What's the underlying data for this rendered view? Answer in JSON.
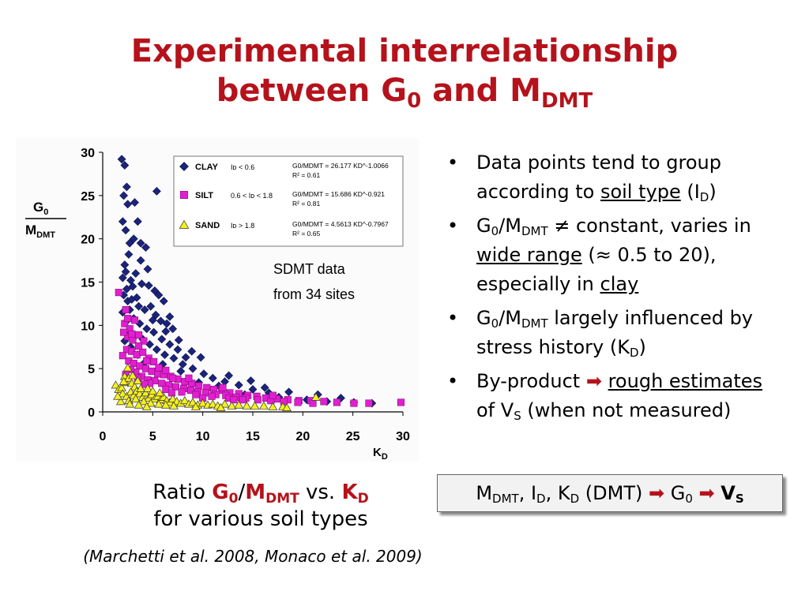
{
  "slide": {
    "title_line1": "Experimental interrelationship",
    "title_line2_a": "between G",
    "title_line2_sub0": "0",
    "title_line2_b": " and M",
    "title_line2_subDMT": "DMT",
    "colors": {
      "title": "#b5121b",
      "clay": "#1a237e",
      "silt": "#e020d0",
      "sand": "#f5f01a"
    }
  },
  "chart_data": {
    "type": "scatter",
    "xlabel_main": "K",
    "xlabel_sub": "D",
    "ylabel_top_main": "G",
    "ylabel_top_sub": "0",
    "ylabel_bottom_main": "M",
    "ylabel_bottom_sub": "DMT",
    "xlim": [
      0,
      30
    ],
    "ylim": [
      0,
      30
    ],
    "xticks": [
      0,
      5,
      10,
      15,
      20,
      25,
      30
    ],
    "yticks": [
      0,
      5,
      10,
      15,
      20,
      25,
      30
    ],
    "grid": false,
    "legend_position": "top-right",
    "annotation_line1": "SDMT data",
    "annotation_line2": "from 34 sites",
    "series": [
      {
        "name": "CLAY",
        "marker": "diamond",
        "color": "#1a237e",
        "condition": "I_D < 0.6",
        "equation": "G0/MDMT = 26.177 KD^-1.0066",
        "r2": "R² = 0.61",
        "points": [
          [
            1.9,
            29.2
          ],
          [
            2.2,
            28.5
          ],
          [
            2.4,
            26
          ],
          [
            2.1,
            25
          ],
          [
            2.5,
            24
          ],
          [
            2.0,
            22
          ],
          [
            2.3,
            21
          ],
          [
            3.2,
            24.2
          ],
          [
            3.5,
            22
          ],
          [
            5.4,
            25.5
          ],
          [
            4.3,
            19
          ],
          [
            3.1,
            20
          ],
          [
            2.7,
            19.5
          ],
          [
            3.8,
            17.5
          ],
          [
            4.5,
            16.5
          ],
          [
            2.2,
            17
          ],
          [
            2.6,
            18.2
          ],
          [
            2.3,
            16.2
          ],
          [
            2.0,
            15.5
          ],
          [
            2.8,
            15.2
          ],
          [
            3.3,
            16
          ],
          [
            3.0,
            14.5
          ],
          [
            2.4,
            14.2
          ],
          [
            2.1,
            13.5
          ],
          [
            2.5,
            12.8
          ],
          [
            3.4,
            13.2
          ],
          [
            3.9,
            14.8
          ],
          [
            4.6,
            14.6
          ],
          [
            5.2,
            14
          ],
          [
            5.6,
            13.5
          ],
          [
            6.1,
            12.8
          ],
          [
            3.6,
            12.2
          ],
          [
            4.2,
            11.8
          ],
          [
            4.8,
            12.2
          ],
          [
            5.3,
            11.2
          ],
          [
            5.8,
            10.5
          ],
          [
            6.4,
            10.2
          ],
          [
            7.0,
            9.6
          ],
          [
            3.1,
            10.8
          ],
          [
            3.7,
            10.2
          ],
          [
            4.4,
            9.6
          ],
          [
            5.1,
            9.2
          ],
          [
            5.9,
            8.4
          ],
          [
            6.7,
            7.8
          ],
          [
            7.5,
            7.2
          ],
          [
            8.3,
            6.3
          ],
          [
            4.0,
            8.4
          ],
          [
            4.7,
            7.8
          ],
          [
            5.4,
            7.2
          ],
          [
            6.2,
            6.6
          ],
          [
            7.1,
            6.2
          ],
          [
            8.0,
            5.5
          ],
          [
            9.0,
            5.0
          ],
          [
            10.1,
            4.4
          ],
          [
            11.0,
            3.9
          ],
          [
            12.2,
            3.5
          ],
          [
            13.6,
            3.1
          ],
          [
            15.0,
            2.6
          ],
          [
            16.6,
            2.2
          ],
          [
            18.6,
            2.3
          ],
          [
            20.4,
            1.4
          ],
          [
            22.4,
            1.2
          ],
          [
            25.1,
            1.1
          ],
          [
            26.9,
            1.0
          ],
          [
            2.0,
            11.5
          ],
          [
            2.4,
            10.5
          ],
          [
            2.6,
            9.4
          ],
          [
            3.1,
            8.6
          ],
          [
            3.5,
            6.6
          ],
          [
            2.8,
            7.5
          ],
          [
            2.2,
            8.2
          ],
          [
            4.1,
            5.6
          ],
          [
            6.0,
            5.5
          ],
          [
            7.8,
            4.7
          ],
          [
            9.6,
            3.4
          ],
          [
            11.6,
            3.0
          ],
          [
            14.2,
            2.0
          ],
          [
            17.6,
            1.7
          ],
          [
            3.8,
            19.5
          ],
          [
            2.9,
            13
          ],
          [
            6.7,
            11
          ],
          [
            7.6,
            8.3
          ],
          [
            8.9,
            7.0
          ],
          [
            9.8,
            6.3
          ],
          [
            12.6,
            4.2
          ],
          [
            14.8,
            3.6
          ],
          [
            16.2,
            2.8
          ],
          [
            21.5,
            2.0
          ],
          [
            23.8,
            1.6
          ],
          [
            2.7,
            11.8
          ],
          [
            5.0,
            10.6
          ],
          [
            6.3,
            9.3
          ]
        ]
      },
      {
        "name": "SILT",
        "marker": "square",
        "color": "#e020d0",
        "condition": "0.6 < I_D < 1.8",
        "equation": "G0/MDMT = 15.686 KD^-0.921",
        "r2": "R² = 0.81",
        "points": [
          [
            1.6,
            13.8
          ],
          [
            2.3,
            11.8
          ],
          [
            2.2,
            10.2
          ],
          [
            2.7,
            9.6
          ],
          [
            3.2,
            10.6
          ],
          [
            2.5,
            8.7
          ],
          [
            3.0,
            8.3
          ],
          [
            3.6,
            8.9
          ],
          [
            4.1,
            8.2
          ],
          [
            2.4,
            7.2
          ],
          [
            2.9,
            7.0
          ],
          [
            3.4,
            6.6
          ],
          [
            4.0,
            6.9
          ],
          [
            4.6,
            6.2
          ],
          [
            5.1,
            5.8
          ],
          [
            2.6,
            5.9
          ],
          [
            3.1,
            5.6
          ],
          [
            3.7,
            5.3
          ],
          [
            4.3,
            5.0
          ],
          [
            4.9,
            4.7
          ],
          [
            5.5,
            4.4
          ],
          [
            6.1,
            4.3
          ],
          [
            6.8,
            4.1
          ],
          [
            7.5,
            3.8
          ],
          [
            8.2,
            3.5
          ],
          [
            8.9,
            3.3
          ],
          [
            9.6,
            3.0
          ],
          [
            10.4,
            2.8
          ],
          [
            11.1,
            2.6
          ],
          [
            11.9,
            2.5
          ],
          [
            12.7,
            2.2
          ],
          [
            13.6,
            2.1
          ],
          [
            14.5,
            1.9
          ],
          [
            15.4,
            1.8
          ],
          [
            16.3,
            1.6
          ],
          [
            17.4,
            1.5
          ],
          [
            18.5,
            1.4
          ],
          [
            19.6,
            1.3
          ],
          [
            20.8,
            1.3
          ],
          [
            22.1,
            1.2
          ],
          [
            23.4,
            1.1
          ],
          [
            25.1,
            1.0
          ],
          [
            26.6,
            1.0
          ],
          [
            29.8,
            1.1
          ],
          [
            2.0,
            6.5
          ],
          [
            3.3,
            4.6
          ],
          [
            3.9,
            4.1
          ],
          [
            4.5,
            3.7
          ],
          [
            5.2,
            3.6
          ],
          [
            5.9,
            3.3
          ],
          [
            6.6,
            3.1
          ],
          [
            7.3,
            2.9
          ],
          [
            8.1,
            2.7
          ],
          [
            8.8,
            2.5
          ],
          [
            9.5,
            2.3
          ],
          [
            10.3,
            2.2
          ],
          [
            11.3,
            2.0
          ],
          [
            12.3,
            1.9
          ],
          [
            13.3,
            1.7
          ],
          [
            14.3,
            1.6
          ],
          [
            15.5,
            1.4
          ],
          [
            16.8,
            1.3
          ],
          [
            18.1,
            1.2
          ],
          [
            19.5,
            1.1
          ],
          [
            21.0,
            1.0
          ],
          [
            2.8,
            4.9
          ],
          [
            3.5,
            3.9
          ],
          [
            4.7,
            3.3
          ],
          [
            6.3,
            2.6
          ],
          [
            7.9,
            2.3
          ],
          [
            9.3,
            2.0
          ],
          [
            10.9,
            1.8
          ],
          [
            12.6,
            1.6
          ],
          [
            14.0,
            1.4
          ],
          [
            2.1,
            9.2
          ],
          [
            2.5,
            10.8
          ],
          [
            2.9,
            9.0
          ],
          [
            3.6,
            7.6
          ],
          [
            4.4,
            5.9
          ],
          [
            5.6,
            5.1
          ],
          [
            6.3,
            4.8
          ],
          [
            7.0,
            3.9
          ],
          [
            8.6,
            3.9
          ],
          [
            12.0,
            2.8
          ],
          [
            13.1,
            1.4
          ],
          [
            17.0,
            1.9
          ],
          [
            2.3,
            4.3
          ],
          [
            4.2,
            3.2
          ],
          [
            6.9,
            2.2
          ],
          [
            10.0,
            1.6
          ]
        ]
      },
      {
        "name": "SAND",
        "marker": "triangle",
        "color": "#f5f01a",
        "condition": "I_D > 1.8",
        "equation": "G0/MDMT = 4.5613 KD^-0.7967",
        "r2": "R² = 0.65",
        "points": [
          [
            1.3,
            3.1
          ],
          [
            1.6,
            2.6
          ],
          [
            1.9,
            2.8
          ],
          [
            2.2,
            4.1
          ],
          [
            2.5,
            5.1
          ],
          [
            2.3,
            3.4
          ],
          [
            2.6,
            3.9
          ],
          [
            2.9,
            3.3
          ],
          [
            3.2,
            2.9
          ],
          [
            3.5,
            3.6
          ],
          [
            2.0,
            2.1
          ],
          [
            2.4,
            1.8
          ],
          [
            2.8,
            2.3
          ],
          [
            3.1,
            1.9
          ],
          [
            3.4,
            2.4
          ],
          [
            3.7,
            2.1
          ],
          [
            4.0,
            1.7
          ],
          [
            4.3,
            2.2
          ],
          [
            4.6,
            1.6
          ],
          [
            4.9,
            2.0
          ],
          [
            5.2,
            1.5
          ],
          [
            5.5,
            1.8
          ],
          [
            5.8,
            1.4
          ],
          [
            6.1,
            1.7
          ],
          [
            6.4,
            1.3
          ],
          [
            6.7,
            1.1
          ],
          [
            7.0,
            1.5
          ],
          [
            7.4,
            1.2
          ],
          [
            7.8,
            1.0
          ],
          [
            8.2,
            1.3
          ],
          [
            8.6,
            0.9
          ],
          [
            9.0,
            1.1
          ],
          [
            9.5,
            0.8
          ],
          [
            10.0,
            1.0
          ],
          [
            10.5,
            0.8
          ],
          [
            11.0,
            0.9
          ],
          [
            11.5,
            0.7
          ],
          [
            12.2,
            0.9
          ],
          [
            12.9,
            0.7
          ],
          [
            13.6,
            0.8
          ],
          [
            14.4,
            0.7
          ],
          [
            15.2,
            0.7
          ],
          [
            16.1,
            0.7
          ],
          [
            17.0,
            0.6
          ],
          [
            18.0,
            0.6
          ],
          [
            18.4,
            0.5
          ],
          [
            21.3,
            1.7
          ],
          [
            1.8,
            1.2
          ],
          [
            2.6,
            1.3
          ],
          [
            3.3,
            1.5
          ],
          [
            4.1,
            1.2
          ],
          [
            4.8,
            1.0
          ],
          [
            5.6,
            0.9
          ],
          [
            6.3,
            0.8
          ],
          [
            7.1,
            0.7
          ],
          [
            1.5,
            1.8
          ],
          [
            2.1,
            3.5
          ],
          [
            3.0,
            4.2
          ],
          [
            3.8,
            2.7
          ],
          [
            4.5,
            2.7
          ],
          [
            5.0,
            2.4
          ],
          [
            5.7,
            2.2
          ],
          [
            2.7,
            0.9
          ],
          [
            3.6,
            0.8
          ],
          [
            4.4,
            0.6
          ],
          [
            9.3,
            0.6
          ],
          [
            11.8,
            0.5
          ]
        ]
      }
    ]
  },
  "caption": {
    "prefix": "Ratio ",
    "g_main": "G",
    "g_sub": "0",
    "slash": "/",
    "m_main": "M",
    "m_sub": "DMT",
    "vs": " vs. ",
    "k_main": "K",
    "k_sub": "D",
    "line2": "for various soil types",
    "citation": "(Marchetti et al. 2008, Monaco et al. 2009)"
  },
  "bullets": {
    "dot": "•",
    "b1_a": "Data points tend to group according to ",
    "b1_u": "soil type",
    "b1_b": " (I",
    "b1_sub": "D",
    "b1_c": ")",
    "b2_a": "G",
    "b2_sub0": "0",
    "b2_b": "/M",
    "b2_subDMT": "DMT",
    "b2_c": " ≠ constant, varies in ",
    "b2_u1": "wide range",
    "b2_d": " (≈ 0.5 to 20), especially in ",
    "b2_u2": "clay",
    "b3_a": "G",
    "b3_sub0": "0",
    "b3_b": "/M",
    "b3_subDMT": "DMT",
    "b3_c": " largely influenced by stress history (K",
    "b3_sub": "D",
    "b3_d": ")",
    "b4_a": "By-product ",
    "b4_arrow": "➡",
    "b4_b": " ",
    "b4_u": "rough estimates",
    "b4_c": " of V",
    "b4_sub": "S",
    "b4_d": " (when not measured)"
  },
  "formula": {
    "m": "M",
    "m_sub": "DMT",
    "sep1": ", I",
    "i_sub": "D",
    "sep2": ", K",
    "k_sub": "D",
    "dmt": " (DMT) ",
    "arrow": "➡",
    "g": " G",
    "g_sub": "0",
    "sp": " ",
    "v": "V",
    "v_sub": "S"
  }
}
